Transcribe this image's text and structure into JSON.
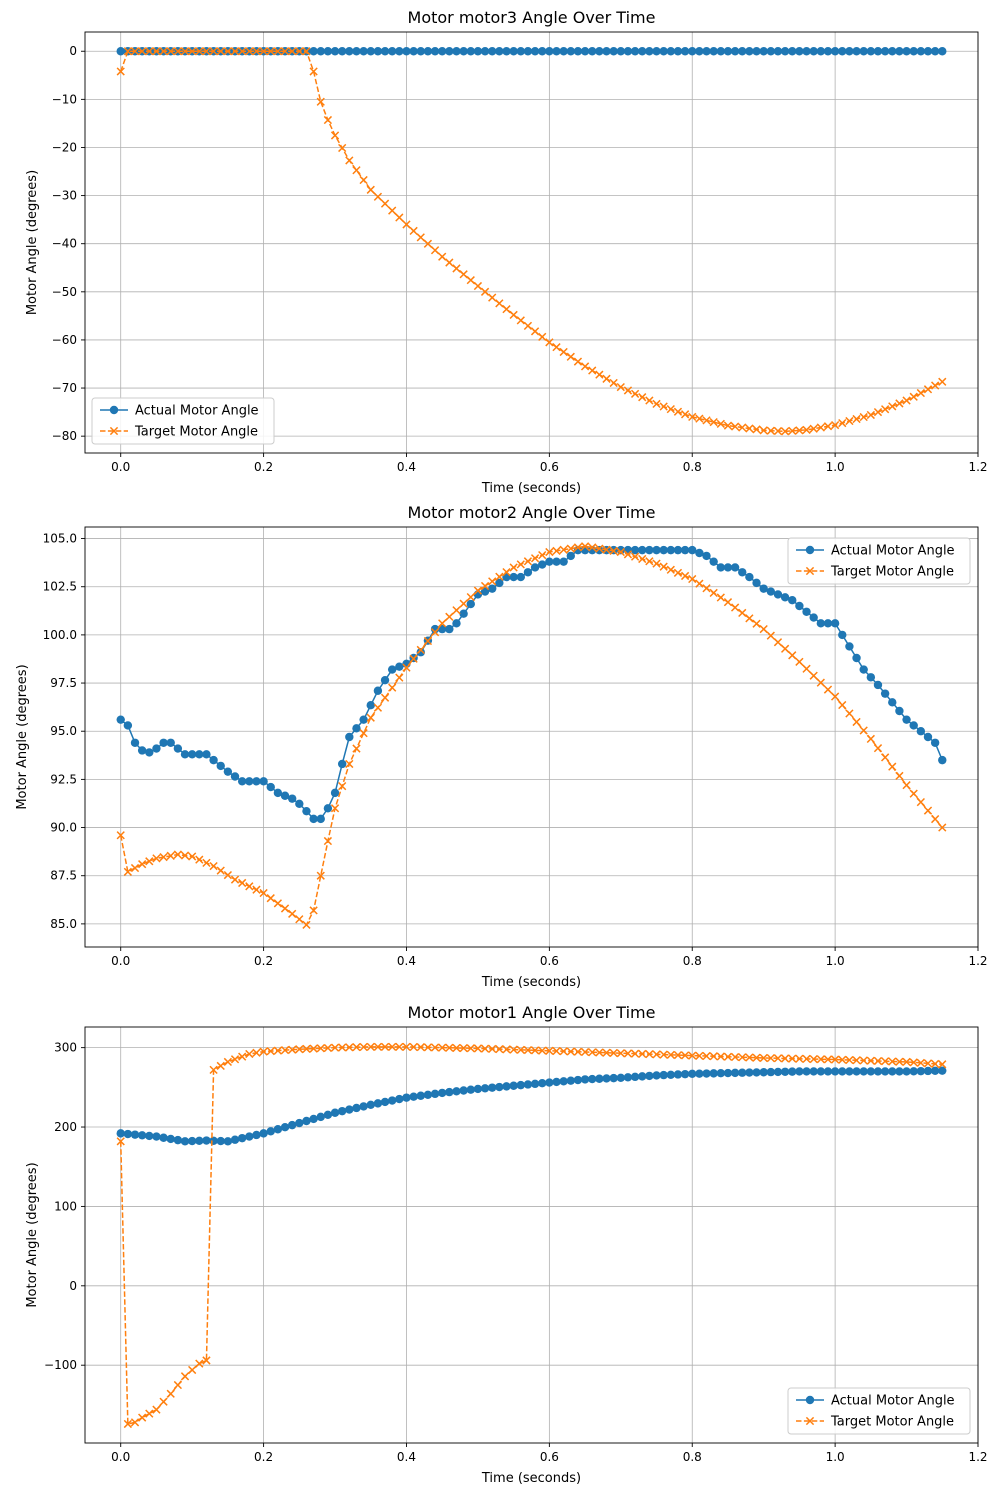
{
  "colors": {
    "actual": "#1f77b4",
    "target": "#ff7f0e",
    "grid": "#b0b0b0"
  },
  "chart_data": [
    {
      "type": "line",
      "title": "Motor motor3 Angle Over Time",
      "xlabel": "Time (seconds)",
      "ylabel": "Motor Angle (degrees)",
      "xlim": [
        -0.05,
        1.2
      ],
      "ylim": [
        -83.5,
        4
      ],
      "xticks": [
        0.0,
        0.2,
        0.4,
        0.6,
        0.8,
        1.0,
        1.2
      ],
      "xtick_labels": [
        "0.0",
        "0.2",
        "0.4",
        "0.6",
        "0.8",
        "1.0",
        "1.2"
      ],
      "yticks": [
        0,
        -10,
        -20,
        -30,
        -40,
        -50,
        -60,
        -70,
        -80
      ],
      "ytick_labels": [
        "0",
        "−10",
        "−20",
        "−30",
        "−40",
        "−50",
        "−60",
        "−70",
        "−80"
      ],
      "grid": true,
      "legend": {
        "position": "lower-left",
        "entries": [
          "Actual Motor Angle",
          "Target Motor Angle"
        ]
      },
      "series": [
        {
          "name": "Actual Motor Angle",
          "marker": "circle",
          "style": "solid",
          "x_start": 0.0,
          "x_step": 0.01,
          "count": 116,
          "keyframes": [
            [
              0.0,
              0.0
            ],
            [
              1.15,
              0.0
            ]
          ]
        },
        {
          "name": "Target Motor Angle",
          "marker": "x",
          "style": "dashed",
          "x_start": 0.0,
          "x_step": 0.01,
          "count": 116,
          "keyframes": [
            [
              0.0,
              -4.2
            ],
            [
              0.01,
              0.0
            ],
            [
              0.26,
              0.0
            ],
            [
              0.27,
              -4.2
            ],
            [
              0.28,
              -10.5
            ],
            [
              0.29,
              -14.3
            ],
            [
              0.3,
              -17.5
            ],
            [
              0.32,
              -22.7
            ],
            [
              0.35,
              -28.8
            ],
            [
              0.4,
              -36.0
            ],
            [
              0.45,
              -42.7
            ],
            [
              0.5,
              -48.8
            ],
            [
              0.55,
              -54.8
            ],
            [
              0.6,
              -60.5
            ],
            [
              0.65,
              -65.5
            ],
            [
              0.7,
              -69.8
            ],
            [
              0.75,
              -73.3
            ],
            [
              0.8,
              -76.0
            ],
            [
              0.85,
              -77.8
            ],
            [
              0.9,
              -78.8
            ],
            [
              0.93,
              -79.0
            ],
            [
              0.96,
              -78.7
            ],
            [
              1.0,
              -77.7
            ],
            [
              1.05,
              -75.6
            ],
            [
              1.1,
              -72.6
            ],
            [
              1.15,
              -68.7
            ]
          ]
        }
      ]
    },
    {
      "type": "line",
      "title": "Motor motor2 Angle Over Time",
      "xlabel": "Time (seconds)",
      "ylabel": "Motor Angle (degrees)",
      "xlim": [
        -0.05,
        1.2
      ],
      "ylim": [
        83.8,
        105.6
      ],
      "xticks": [
        0.0,
        0.2,
        0.4,
        0.6,
        0.8,
        1.0,
        1.2
      ],
      "xtick_labels": [
        "0.0",
        "0.2",
        "0.4",
        "0.6",
        "0.8",
        "1.0",
        "1.2"
      ],
      "yticks": [
        85.0,
        87.5,
        90.0,
        92.5,
        95.0,
        97.5,
        100.0,
        102.5,
        105.0
      ],
      "ytick_labels": [
        "85.0",
        "87.5",
        "90.0",
        "92.5",
        "95.0",
        "97.5",
        "100.0",
        "102.5",
        "105.0"
      ],
      "grid": true,
      "legend": {
        "position": "upper-right",
        "entries": [
          "Actual Motor Angle",
          "Target Motor Angle"
        ]
      },
      "series": [
        {
          "name": "Actual Motor Angle",
          "marker": "circle",
          "style": "solid",
          "x_start": 0.0,
          "x_step": 0.01,
          "count": 116,
          "keyframes": [
            [
              0.0,
              95.6
            ],
            [
              0.01,
              95.3
            ],
            [
              0.02,
              94.4
            ],
            [
              0.035,
              93.8
            ],
            [
              0.05,
              94.1
            ],
            [
              0.06,
              94.4
            ],
            [
              0.07,
              94.4
            ],
            [
              0.08,
              94.1
            ],
            [
              0.09,
              93.8
            ],
            [
              0.12,
              93.8
            ],
            [
              0.15,
              92.9
            ],
            [
              0.17,
              92.4
            ],
            [
              0.2,
              92.4
            ],
            [
              0.22,
              91.8
            ],
            [
              0.24,
              91.5
            ],
            [
              0.255,
              91.1
            ],
            [
              0.265,
              90.6
            ],
            [
              0.275,
              90.3
            ],
            [
              0.285,
              90.6
            ],
            [
              0.3,
              91.8
            ],
            [
              0.31,
              93.3
            ],
            [
              0.32,
              94.7
            ],
            [
              0.34,
              95.6
            ],
            [
              0.36,
              97.1
            ],
            [
              0.38,
              98.2
            ],
            [
              0.4,
              98.5
            ],
            [
              0.42,
              99.1
            ],
            [
              0.44,
              100.3
            ],
            [
              0.46,
              100.3
            ],
            [
              0.47,
              100.6
            ],
            [
              0.5,
              102.1
            ],
            [
              0.52,
              102.4
            ],
            [
              0.54,
              103.0
            ],
            [
              0.56,
              103.0
            ],
            [
              0.58,
              103.5
            ],
            [
              0.6,
              103.8
            ],
            [
              0.62,
              103.8
            ],
            [
              0.64,
              104.4
            ],
            [
              0.8,
              104.4
            ],
            [
              0.82,
              104.1
            ],
            [
              0.84,
              103.5
            ],
            [
              0.86,
              103.5
            ],
            [
              0.88,
              103.0
            ],
            [
              0.9,
              102.4
            ],
            [
              0.92,
              102.1
            ],
            [
              0.94,
              101.8
            ],
            [
              0.96,
              101.2
            ],
            [
              0.98,
              100.6
            ],
            [
              1.0,
              100.6
            ],
            [
              1.02,
              99.4
            ],
            [
              1.04,
              98.2
            ],
            [
              1.06,
              97.4
            ],
            [
              1.08,
              96.5
            ],
            [
              1.1,
              95.6
            ],
            [
              1.12,
              95.0
            ],
            [
              1.14,
              94.4
            ],
            [
              1.15,
              93.5
            ]
          ]
        },
        {
          "name": "Target Motor Angle",
          "marker": "x",
          "style": "dashed",
          "x_start": 0.0,
          "x_step": 0.01,
          "count": 116,
          "keyframes": [
            [
              0.0,
              89.6
            ],
            [
              0.01,
              87.7
            ],
            [
              0.03,
              88.1
            ],
            [
              0.05,
              88.4
            ],
            [
              0.08,
              88.6
            ],
            [
              0.1,
              88.5
            ],
            [
              0.13,
              88.0
            ],
            [
              0.16,
              87.3
            ],
            [
              0.2,
              86.6
            ],
            [
              0.23,
              85.8
            ],
            [
              0.255,
              85.1
            ],
            [
              0.265,
              84.8
            ],
            [
              0.275,
              86.6
            ],
            [
              0.29,
              89.3
            ],
            [
              0.3,
              91.0
            ],
            [
              0.32,
              93.3
            ],
            [
              0.35,
              95.7
            ],
            [
              0.4,
              98.3
            ],
            [
              0.45,
              100.6
            ],
            [
              0.5,
              102.3
            ],
            [
              0.55,
              103.5
            ],
            [
              0.6,
              104.3
            ],
            [
              0.65,
              104.6
            ],
            [
              0.7,
              104.3
            ],
            [
              0.75,
              103.7
            ],
            [
              0.8,
              102.9
            ],
            [
              0.85,
              101.7
            ],
            [
              0.9,
              100.3
            ],
            [
              0.95,
              98.6
            ],
            [
              1.0,
              96.8
            ],
            [
              1.05,
              94.6
            ],
            [
              1.1,
              92.2
            ],
            [
              1.15,
              90.0
            ]
          ]
        }
      ]
    },
    {
      "type": "line",
      "title": "Motor motor1 Angle Over Time",
      "xlabel": "Time (seconds)",
      "ylabel": "Motor Angle (degrees)",
      "xlim": [
        -0.05,
        1.2
      ],
      "ylim": [
        -198,
        326
      ],
      "xticks": [
        0.0,
        0.2,
        0.4,
        0.6,
        0.8,
        1.0,
        1.2
      ],
      "xtick_labels": [
        "0.0",
        "0.2",
        "0.4",
        "0.6",
        "0.8",
        "1.0",
        "1.2"
      ],
      "yticks": [
        -100,
        0,
        100,
        200,
        300
      ],
      "ytick_labels": [
        "−100",
        "0",
        "100",
        "200",
        "300"
      ],
      "grid": true,
      "legend": {
        "position": "lower-right",
        "entries": [
          "Actual Motor Angle",
          "Target Motor Angle"
        ]
      },
      "series": [
        {
          "name": "Actual Motor Angle",
          "marker": "circle",
          "style": "solid",
          "x_start": 0.0,
          "x_step": 0.01,
          "count": 116,
          "keyframes": [
            [
              0.0,
              192
            ],
            [
              0.05,
              188
            ],
            [
              0.09,
              182
            ],
            [
              0.12,
              183
            ],
            [
              0.15,
              182
            ],
            [
              0.2,
              192
            ],
            [
              0.25,
              205
            ],
            [
              0.3,
              218
            ],
            [
              0.35,
              228
            ],
            [
              0.4,
              237
            ],
            [
              0.45,
              243
            ],
            [
              0.5,
              248
            ],
            [
              0.55,
              252
            ],
            [
              0.6,
              256
            ],
            [
              0.65,
              260
            ],
            [
              0.7,
              262
            ],
            [
              0.75,
              265
            ],
            [
              0.8,
              267
            ],
            [
              0.85,
              268
            ],
            [
              0.9,
              269
            ],
            [
              0.95,
              270
            ],
            [
              1.0,
              270
            ],
            [
              1.1,
              270
            ],
            [
              1.15,
              271
            ]
          ]
        },
        {
          "name": "Target Motor Angle",
          "marker": "x",
          "style": "dashed",
          "x_start": 0.0,
          "x_step": 0.01,
          "count": 116,
          "keyframes": [
            [
              0.0,
              182
            ],
            [
              0.01,
              -174
            ],
            [
              0.02,
              -172
            ],
            [
              0.03,
              -166
            ],
            [
              0.05,
              -156
            ],
            [
              0.07,
              -136
            ],
            [
              0.09,
              -114
            ],
            [
              0.11,
              -98
            ],
            [
              0.12,
              -94
            ],
            [
              0.13,
              272
            ],
            [
              0.15,
              282
            ],
            [
              0.18,
              292
            ],
            [
              0.2,
              295
            ],
            [
              0.25,
              298
            ],
            [
              0.3,
              300
            ],
            [
              0.35,
              301
            ],
            [
              0.4,
              301
            ],
            [
              0.5,
              299
            ],
            [
              0.6,
              296
            ],
            [
              0.7,
              293
            ],
            [
              0.8,
              290
            ],
            [
              0.9,
              287
            ],
            [
              1.0,
              285
            ],
            [
              1.1,
              282
            ],
            [
              1.15,
              279
            ]
          ]
        }
      ]
    }
  ]
}
